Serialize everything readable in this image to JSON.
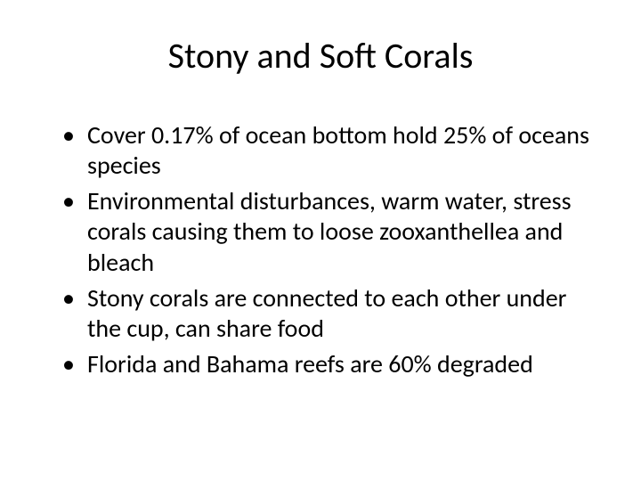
{
  "slide": {
    "title": "Stony and Soft Corals",
    "bullets": [
      "Cover 0.17% of ocean bottom hold 25% of oceans species",
      "Environmental disturbances, warm water, stress corals causing them to loose zooxanthellea and bleach",
      "Stony corals are connected to each other under the cup, can share food",
      "Florida and Bahama reefs are 60% degraded"
    ]
  },
  "styling": {
    "background_color": "#ffffff",
    "text_color": "#000000",
    "title_fontsize": 40,
    "body_fontsize": 28,
    "font_family": "Calibri"
  }
}
